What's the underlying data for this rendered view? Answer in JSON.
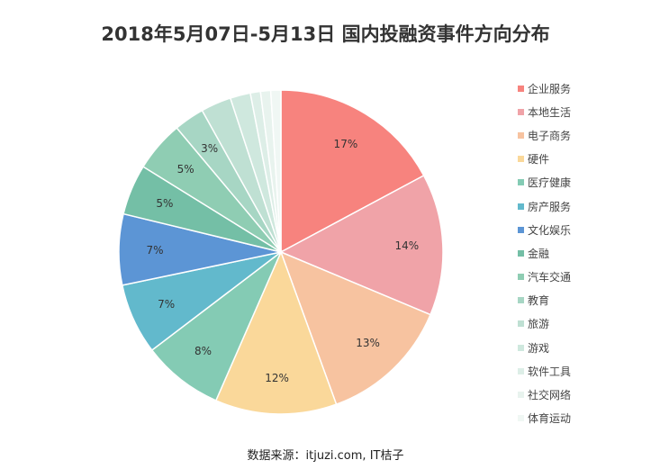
{
  "chart_data": {
    "type": "pie",
    "title": "2018年5月07日-5月13日 国内投融资事件方向分布",
    "source": "数据来源：itjuzi.com, IT桔子",
    "categories": [
      "企业服务",
      "本地生活",
      "电子商务",
      "硬件",
      "医疗健康",
      "房产服务",
      "文化娱乐",
      "金融",
      "汽车交通",
      "教育",
      "旅游",
      "游戏",
      "软件工具",
      "社交网络",
      "体育运动"
    ],
    "values": [
      17,
      14,
      13,
      12,
      8,
      7,
      7,
      5,
      5,
      3,
      3,
      2,
      1,
      1,
      1
    ],
    "data_labels": [
      "17%",
      "14%",
      "13%",
      "12%",
      "8%",
      "7%",
      "7%",
      "5%",
      "5%",
      "3%",
      "",
      "",
      "",
      "",
      ""
    ],
    "colors": [
      "#F7837E",
      "#F0A3A8",
      "#F7C3A0",
      "#FAD89A",
      "#84CBB4",
      "#62B9CC",
      "#5C95D5",
      "#74BFA6",
      "#8FCDB3",
      "#A7D6C4",
      "#BFE0D3",
      "#CFE8DE",
      "#DDEEE7",
      "#E8F3EE",
      "#F0F7F4"
    ],
    "legend_position": "right"
  }
}
